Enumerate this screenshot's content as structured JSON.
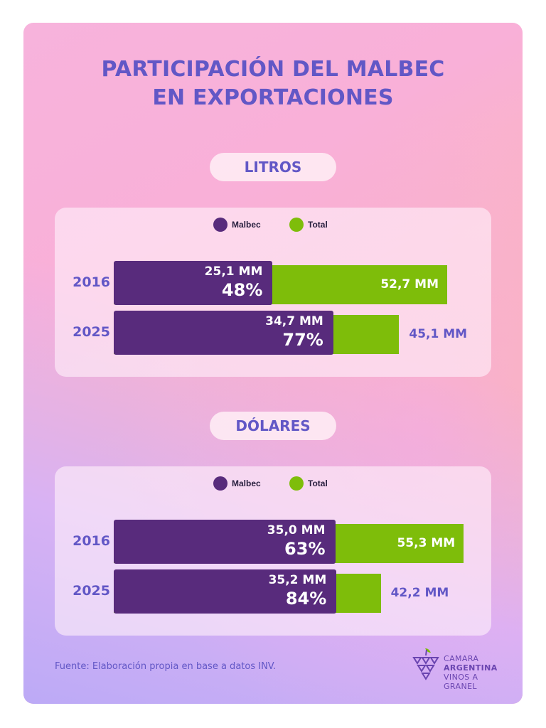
{
  "title_line1": "PARTICIPACIÓN DEL MALBEC",
  "title_line2": "EN EXPORTACIONES",
  "legend": {
    "malbec": "Malbec",
    "total": "Total"
  },
  "colors": {
    "malbec": "#582b7c",
    "total": "#7ebd0a",
    "accent": "#6257c6"
  },
  "chart_data": [
    {
      "type": "bar",
      "title": "LITROS",
      "categories": [
        "2016",
        "2025"
      ],
      "series": [
        {
          "name": "Malbec",
          "values": [
            25.1,
            34.7
          ],
          "labels": [
            "25,1 MM",
            "34,7 MM"
          ],
          "percent_labels": [
            "48%",
            "77%"
          ],
          "percent": [
            48,
            77
          ]
        },
        {
          "name": "Total",
          "values": [
            52.7,
            45.1
          ],
          "labels": [
            "52,7 MM",
            "45,1 MM"
          ]
        }
      ],
      "legend": "top"
    },
    {
      "type": "bar",
      "title": "DÓLARES",
      "categories": [
        "2016",
        "2025"
      ],
      "series": [
        {
          "name": "Malbec",
          "values": [
            35.0,
            35.2
          ],
          "labels": [
            "35,0 MM",
            "35,2 MM"
          ],
          "percent_labels": [
            "63%",
            "84%"
          ],
          "percent": [
            63,
            84
          ]
        },
        {
          "name": "Total",
          "values": [
            55.3,
            42.2
          ],
          "labels": [
            "55,3 MM",
            "42,2 MM"
          ]
        }
      ],
      "legend": "top"
    }
  ],
  "source": "Fuente: Elaboración propia en base a datos INV.",
  "logo": {
    "line1": "CAMARA",
    "line2": "ARGENTINA",
    "line3": "VINOS A GRANEL",
    "icon": "grape-cluster-icon"
  }
}
